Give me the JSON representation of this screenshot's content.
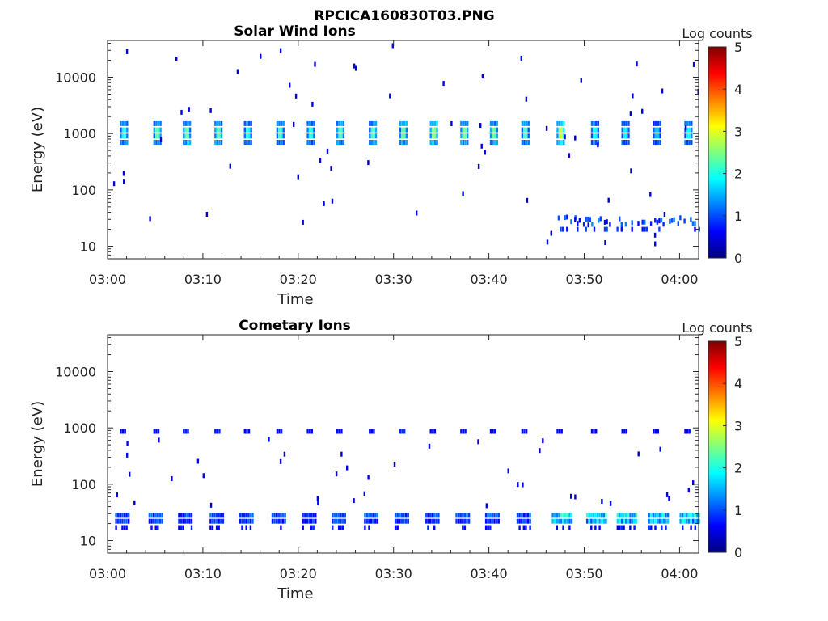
{
  "figure_title": "RPCICA160830T03.PNG",
  "chart_data": [
    {
      "type": "heatmap",
      "title": "Solar Wind Ions",
      "xlabel": "Time",
      "ylabel": "Energy (eV)",
      "y_scale": "log",
      "ylim": [
        6,
        45000
      ],
      "xlim": [
        "03:00",
        "04:02"
      ],
      "x_ticks": [
        "03:00",
        "03:10",
        "03:20",
        "03:30",
        "03:40",
        "03:50",
        "04:00"
      ],
      "y_ticks": [
        "10",
        "100",
        "1000",
        "10000"
      ],
      "colorbar": {
        "label": "Log counts",
        "ticks": [
          "0",
          "1",
          "2",
          "3",
          "4",
          "5"
        ],
        "range": [
          0,
          5
        ]
      },
      "pulse_times_min": [
        1.6,
        5.1,
        8.2,
        11.5,
        14.6,
        18.0,
        21.2,
        24.3,
        27.7,
        30.9,
        34.1,
        37.3,
        40.4,
        43.7,
        47.4,
        51.0,
        54.2,
        57.5,
        60.8
      ],
      "pulse_energy_eV": [
        700,
        1500
      ],
      "pulse_peak_log_counts": [
        2.0,
        2.2,
        2.3,
        2.2,
        1.9,
        2.1,
        2.0,
        2.2,
        2.2,
        2.3,
        2.5,
        2.4,
        2.3,
        2.2,
        2.8,
        1.9,
        1.8,
        1.6,
        1.9
      ],
      "low_energy_band": {
        "energy_eV": [
          20,
          35
        ],
        "start_min": 47,
        "end_min": 62,
        "peak_log_counts": 1.2
      }
    },
    {
      "type": "heatmap",
      "title": "Cometary Ions",
      "xlabel": "Time",
      "ylabel": "Energy (eV)",
      "y_scale": "log",
      "ylim": [
        6,
        45000
      ],
      "xlim": [
        "03:00",
        "04:02"
      ],
      "x_ticks": [
        "03:00",
        "03:10",
        "03:20",
        "03:30",
        "03:40",
        "03:50",
        "04:00"
      ],
      "y_ticks": [
        "10",
        "100",
        "1000",
        "10000"
      ],
      "colorbar": {
        "label": "Log counts",
        "ticks": [
          "0",
          "1",
          "2",
          "3",
          "4",
          "5"
        ],
        "range": [
          0,
          5
        ]
      },
      "pulse_times_min": [
        1.6,
        5.1,
        8.2,
        11.5,
        14.6,
        18.0,
        21.2,
        24.3,
        27.7,
        30.9,
        34.1,
        37.3,
        40.4,
        43.7,
        47.4,
        51.0,
        54.2,
        57.5,
        60.8
      ],
      "pulse_energy_eV": [
        750,
        1000
      ],
      "pulse_peak_log_counts": [
        1.2,
        1.1,
        1.3,
        1.2,
        1.1,
        1.2,
        1.1,
        1.0,
        1.0,
        1.3,
        1.1,
        1.2,
        1.1,
        1.2,
        1.1,
        1.1,
        1.0,
        1.0,
        1.2
      ],
      "low_energy_band": {
        "energy_eV": [
          15,
          35
        ],
        "start_min": 0,
        "end_min": 62,
        "peak_log_counts": 1.3,
        "late_peak_log_counts": 2.3
      }
    }
  ]
}
